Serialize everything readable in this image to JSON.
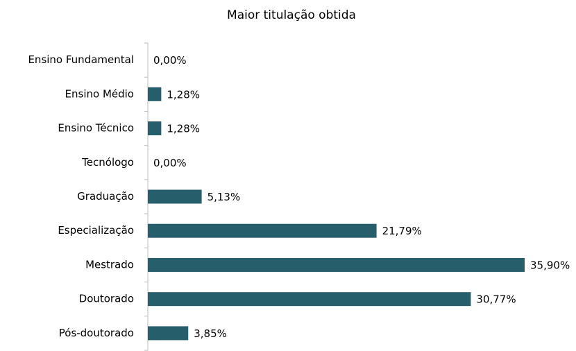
{
  "chart_data": {
    "type": "bar",
    "orientation": "horizontal",
    "title": "Maior titulação obtida",
    "categories": [
      "Ensino Fundamental",
      "Ensino Médio",
      "Ensino Técnico",
      "Tecnólogo",
      "Graduação",
      "Especialização",
      "Mestrado",
      "Doutorado",
      "Pós-doutorado"
    ],
    "values": [
      0,
      1.28,
      1.28,
      0,
      5.13,
      21.79,
      35.9,
      30.77,
      3.85
    ],
    "value_labels": [
      "0,00%",
      "1,28%",
      "1,28%",
      "0,00%",
      "5,13%",
      "21,79%",
      "35,90%",
      "30,77%",
      "3,85%"
    ],
    "color": "#265e6b"
  }
}
